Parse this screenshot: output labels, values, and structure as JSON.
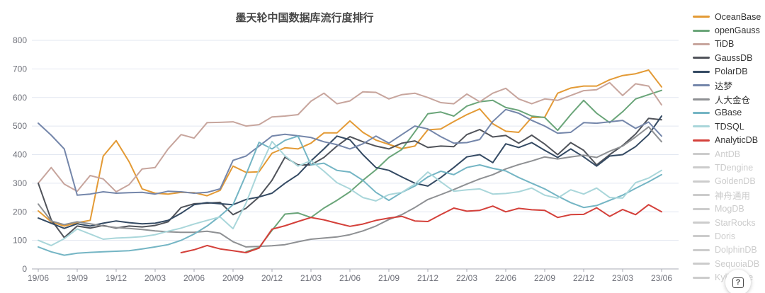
{
  "title": "墨天轮中国数据库流行度排行",
  "help_button": {
    "label": "?"
  },
  "colors": {
    "axis_label": "#6e7079",
    "axis_line": "#a8abb5",
    "gridline": "#e2e7f1",
    "title": "#464646",
    "legend_active_text": "#333333",
    "legend_disabled": "#cccccc",
    "background": "#ffffff"
  },
  "chart_data": {
    "type": "line",
    "title": "墨天轮中国数据库流行度排行",
    "xlabel": "",
    "ylabel": "",
    "ylim": [
      0,
      800
    ],
    "y_ticks": [
      0,
      100,
      200,
      300,
      400,
      500,
      600,
      700,
      800
    ],
    "grid": true,
    "legend_position": "right",
    "x_months_total": 49,
    "x_first_month": "19/06",
    "x_tick_every_months": 3,
    "x_tick_labels": [
      "19/06",
      "19/09",
      "19/12",
      "20/03",
      "20/06",
      "20/09",
      "20/12",
      "21/03",
      "21/06",
      "21/09",
      "21/12",
      "22/03",
      "22/06",
      "22/09",
      "22/12",
      "23/03",
      "23/06"
    ],
    "series": [
      {
        "name": "OceanBase",
        "color": "#e39a35",
        "selected": true,
        "start_index": 0,
        "values": [
          203,
          165,
          150,
          162,
          170,
          395,
          449,
          375,
          280,
          265,
          262,
          268,
          267,
          256,
          275,
          360,
          338,
          340,
          405,
          424,
          420,
          440,
          476,
          476,
          518,
          478,
          451,
          436,
          421,
          430,
          487,
          490,
          516,
          540,
          560,
          508,
          482,
          478,
          530,
          531,
          615,
          633,
          640,
          640,
          662,
          677,
          683,
          696,
          637
        ]
      },
      {
        "name": "openGauss",
        "color": "#6aa579",
        "selected": true,
        "start_index": 16,
        "values": [
          60,
          75,
          135,
          192,
          196,
          180,
          213,
          240,
          270,
          310,
          347,
          390,
          418,
          480,
          543,
          549,
          535,
          570,
          585,
          590,
          565,
          555,
          535,
          530,
          485,
          540,
          590,
          545,
          512,
          550,
          595,
          610,
          625
        ]
      },
      {
        "name": "TiDB",
        "color": "#c7a59d",
        "selected": true,
        "start_index": 0,
        "values": [
          300,
          355,
          297,
          272,
          327,
          315,
          270,
          295,
          350,
          355,
          420,
          470,
          458,
          512,
          513,
          515,
          500,
          505,
          532,
          535,
          540,
          587,
          615,
          578,
          588,
          620,
          618,
          595,
          610,
          615,
          600,
          582,
          578,
          612,
          585,
          615,
          632,
          595,
          578,
          595,
          590,
          607,
          624,
          627,
          652,
          607,
          648,
          640,
          574
        ]
      },
      {
        "name": "GaussDB",
        "color": "#50535a",
        "selected": true,
        "start_index": 0,
        "values": [
          300,
          172,
          110,
          150,
          143,
          152,
          143,
          150,
          147,
          152,
          165,
          215,
          228,
          230,
          233,
          190,
          212,
          252,
          310,
          391,
          364,
          364,
          390,
          430,
          463,
          445,
          430,
          420,
          440,
          448,
          425,
          430,
          428,
          470,
          488,
          462,
          467,
          440,
          468,
          437,
          400,
          442,
          415,
          364,
          400,
          432,
          472,
          527,
          522
        ]
      },
      {
        "name": "PolarDB",
        "color": "#344a63",
        "selected": true,
        "start_index": 0,
        "values": [
          178,
          160,
          142,
          158,
          150,
          160,
          168,
          162,
          158,
          160,
          170,
          195,
          225,
          232,
          228,
          225,
          243,
          252,
          265,
          300,
          330,
          378,
          420,
          465,
          452,
          400,
          355,
          345,
          322,
          300,
          290,
          320,
          355,
          392,
          400,
          372,
          438,
          425,
          442,
          415,
          390,
          420,
          392,
          360,
          395,
          400,
          428,
          470,
          535
        ]
      },
      {
        "name": "达梦",
        "color": "#7486aa",
        "selected": true,
        "start_index": 0,
        "values": [
          510,
          468,
          420,
          258,
          262,
          270,
          265,
          267,
          268,
          262,
          272,
          270,
          265,
          268,
          280,
          380,
          395,
          430,
          465,
          471,
          466,
          460,
          445,
          435,
          420,
          438,
          465,
          440,
          470,
          500,
          490,
          463,
          440,
          442,
          453,
          516,
          558,
          545,
          520,
          500,
          475,
          478,
          512,
          510,
          515,
          520,
          492,
          514,
          465
        ]
      },
      {
        "name": "人大金仓",
        "color": "#8e9093",
        "selected": true,
        "start_index": 0,
        "values": [
          227,
          168,
          155,
          165,
          158,
          150,
          145,
          142,
          138,
          133,
          130,
          128,
          128,
          132,
          125,
          95,
          77,
          79,
          81,
          85,
          95,
          104,
          108,
          112,
          120,
          133,
          150,
          173,
          190,
          215,
          243,
          260,
          278,
          297,
          315,
          330,
          350,
          365,
          378,
          392,
          385,
          392,
          398,
          390,
          412,
          430,
          462,
          497,
          445
        ]
      },
      {
        "name": "GBase",
        "color": "#74b5c4",
        "selected": true,
        "start_index": 0,
        "values": [
          77,
          60,
          48,
          55,
          58,
          60,
          62,
          64,
          70,
          77,
          85,
          100,
          122,
          150,
          185,
          225,
          330,
          443,
          420,
          450,
          465,
          364,
          370,
          345,
          339,
          310,
          268,
          240,
          268,
          290,
          322,
          342,
          330,
          355,
          364,
          352,
          343,
          320,
          300,
          280,
          255,
          232,
          215,
          222,
          240,
          258,
          282,
          305,
          330
        ]
      },
      {
        "name": "TDSQL",
        "color": "#a9d6da",
        "selected": true,
        "start_index": 0,
        "values": [
          100,
          82,
          106,
          140,
          122,
          104,
          108,
          110,
          113,
          120,
          132,
          143,
          157,
          170,
          182,
          141,
          230,
          347,
          446,
          396,
          360,
          379,
          342,
          302,
          280,
          250,
          238,
          260,
          268,
          297,
          339,
          305,
          272,
          277,
          280,
          262,
          264,
          270,
          283,
          258,
          248,
          277,
          262,
          283,
          250,
          248,
          302,
          318,
          345
        ]
      },
      {
        "name": "AnalyticDB",
        "color": "#d4403a",
        "selected": true,
        "start_index": 11,
        "values": [
          57,
          67,
          82,
          70,
          64,
          57,
          73,
          139,
          151,
          166,
          180,
          172,
          160,
          149,
          157,
          170,
          178,
          184,
          168,
          166,
          190,
          213,
          202,
          205,
          220,
          200,
          212,
          207,
          205,
          180,
          190,
          191,
          214,
          184,
          208,
          190,
          225,
          200
        ]
      },
      {
        "name": "AntDB",
        "color": "#cccccc",
        "selected": false
      },
      {
        "name": "TDengine",
        "color": "#cccccc",
        "selected": false
      },
      {
        "name": "GoldenDB",
        "color": "#cccccc",
        "selected": false
      },
      {
        "name": "神舟通用",
        "color": "#cccccc",
        "selected": false
      },
      {
        "name": "MogDB",
        "color": "#cccccc",
        "selected": false
      },
      {
        "name": "StarRocks",
        "color": "#cccccc",
        "selected": false
      },
      {
        "name": "Doris",
        "color": "#cccccc",
        "selected": false
      },
      {
        "name": "DolphinDB",
        "color": "#cccccc",
        "selected": false
      },
      {
        "name": "SequoiaDB",
        "color": "#cccccc",
        "selected": false
      },
      {
        "name": "Kyligence",
        "color": "#cccccc",
        "selected": false
      }
    ]
  }
}
